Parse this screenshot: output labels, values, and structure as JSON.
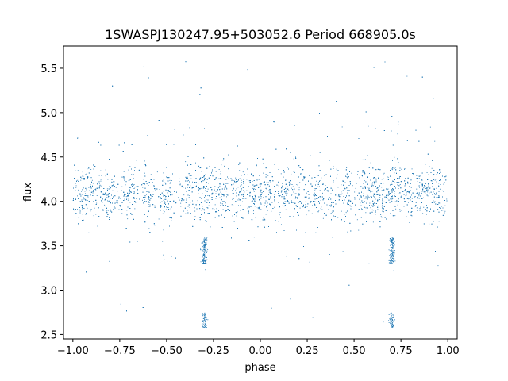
{
  "chart_data": {
    "type": "scatter",
    "title": "1SWASPJ130247.95+503052.6 Period 668905.0s",
    "xlabel": "phase",
    "ylabel": "flux",
    "xlim": [
      -1.05,
      1.05
    ],
    "ylim": [
      2.45,
      5.75
    ],
    "xticks": [
      -1.0,
      -0.75,
      -0.5,
      -0.25,
      0.0,
      0.25,
      0.5,
      0.75,
      1.0
    ],
    "xtick_labels": [
      "−1.00",
      "−0.75",
      "−0.50",
      "−0.25",
      "0.00",
      "0.25",
      "0.50",
      "0.75",
      "1.00"
    ],
    "yticks": [
      2.5,
      3.0,
      3.5,
      4.0,
      4.5,
      5.0,
      5.5
    ],
    "ytick_labels": [
      "2.5",
      "3.0",
      "3.5",
      "4.0",
      "4.5",
      "5.0",
      "5.5"
    ],
    "grid": false,
    "marker_color": "#1f77b4",
    "series": [
      {
        "baseline_flux": 4.1,
        "typical_spread": 0.15,
        "point_count_approx": 22000,
        "phase_range": [
          -1.0,
          1.0
        ],
        "clusters": [
          -0.96,
          -0.88,
          -0.8,
          -0.7,
          -0.6,
          -0.5,
          -0.38,
          -0.3,
          -0.2,
          -0.12,
          -0.04,
          0.04,
          0.12,
          0.2,
          0.3,
          0.38,
          0.46,
          0.56,
          0.62,
          0.7,
          0.78,
          0.86,
          0.94
        ],
        "dip_features": [
          {
            "phase": -0.3,
            "flux_min": 3.3,
            "flux_max": 3.6
          },
          {
            "phase": 0.7,
            "flux_min": 3.3,
            "flux_max": 3.6
          },
          {
            "phase": -0.3,
            "flux_min": 2.58,
            "flux_max": 2.75
          },
          {
            "phase": 0.7,
            "flux_min": 2.58,
            "flux_max": 2.75
          }
        ],
        "outlier_range": [
          2.6,
          5.6
        ]
      }
    ]
  }
}
